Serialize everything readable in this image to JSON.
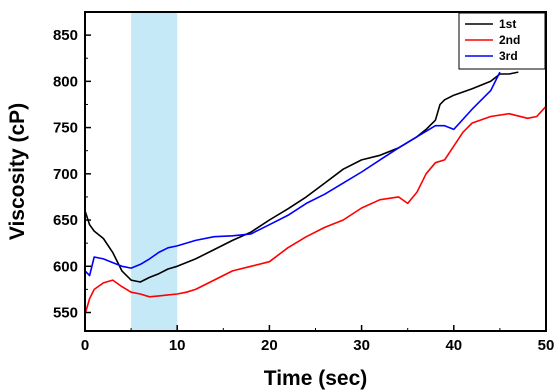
{
  "chart_data": {
    "type": "line",
    "xlabel": "Time (sec)",
    "ylabel": "Viscosity (cP)",
    "xlim": [
      0,
      50
    ],
    "ylim": [
      530,
      875
    ],
    "xticks": [
      0,
      10,
      20,
      30,
      40,
      50
    ],
    "yticks": [
      550,
      600,
      650,
      700,
      750,
      800,
      850
    ],
    "grid": false,
    "legend": "top-right",
    "highlight_band": {
      "x_start": 5,
      "x_end": 10,
      "color": "#c5e9f7"
    },
    "series": [
      {
        "name": "1st",
        "color": "#000000",
        "x": [
          0,
          0.5,
          1,
          2,
          3,
          4,
          5,
          6,
          7,
          8,
          9,
          10,
          12,
          14,
          16,
          18,
          20,
          22,
          24,
          26,
          28,
          30,
          32,
          34,
          36,
          37,
          38,
          38.5,
          39,
          40,
          42,
          44,
          45,
          46,
          47
        ],
        "y": [
          660,
          645,
          638,
          630,
          615,
          595,
          585,
          583,
          588,
          592,
          597,
          600,
          608,
          618,
          628,
          637,
          650,
          662,
          675,
          690,
          705,
          715,
          720,
          728,
          740,
          748,
          758,
          775,
          780,
          785,
          792,
          800,
          808,
          808,
          810
        ]
      },
      {
        "name": "2nd",
        "color": "#ff0000",
        "x": [
          0,
          0.5,
          1,
          2,
          3,
          4,
          5,
          6,
          7,
          8,
          9,
          10,
          11,
          12,
          14,
          16,
          18,
          20,
          22,
          24,
          26,
          28,
          30,
          32,
          34,
          35,
          36,
          37,
          38,
          39,
          40,
          41,
          42,
          44,
          46,
          48,
          49,
          50
        ],
        "y": [
          548,
          565,
          575,
          582,
          585,
          578,
          572,
          570,
          567,
          568,
          569,
          570,
          572,
          575,
          585,
          595,
          600,
          605,
          620,
          632,
          642,
          650,
          663,
          672,
          675,
          668,
          680,
          700,
          712,
          715,
          730,
          745,
          755,
          762,
          765,
          760,
          762,
          773
        ]
      },
      {
        "name": "3rd",
        "color": "#0000ff",
        "x": [
          0,
          0.5,
          1,
          2,
          3,
          4,
          5,
          6,
          7,
          8,
          9,
          10,
          12,
          14,
          16,
          18,
          20,
          22,
          24,
          26,
          28,
          30,
          32,
          34,
          36,
          38,
          39,
          40,
          42,
          44,
          45
        ],
        "y": [
          595,
          590,
          610,
          608,
          604,
          600,
          598,
          602,
          608,
          615,
          620,
          622,
          628,
          632,
          633,
          635,
          645,
          655,
          668,
          678,
          690,
          702,
          715,
          728,
          740,
          752,
          752,
          748,
          770,
          790,
          810
        ]
      }
    ]
  }
}
